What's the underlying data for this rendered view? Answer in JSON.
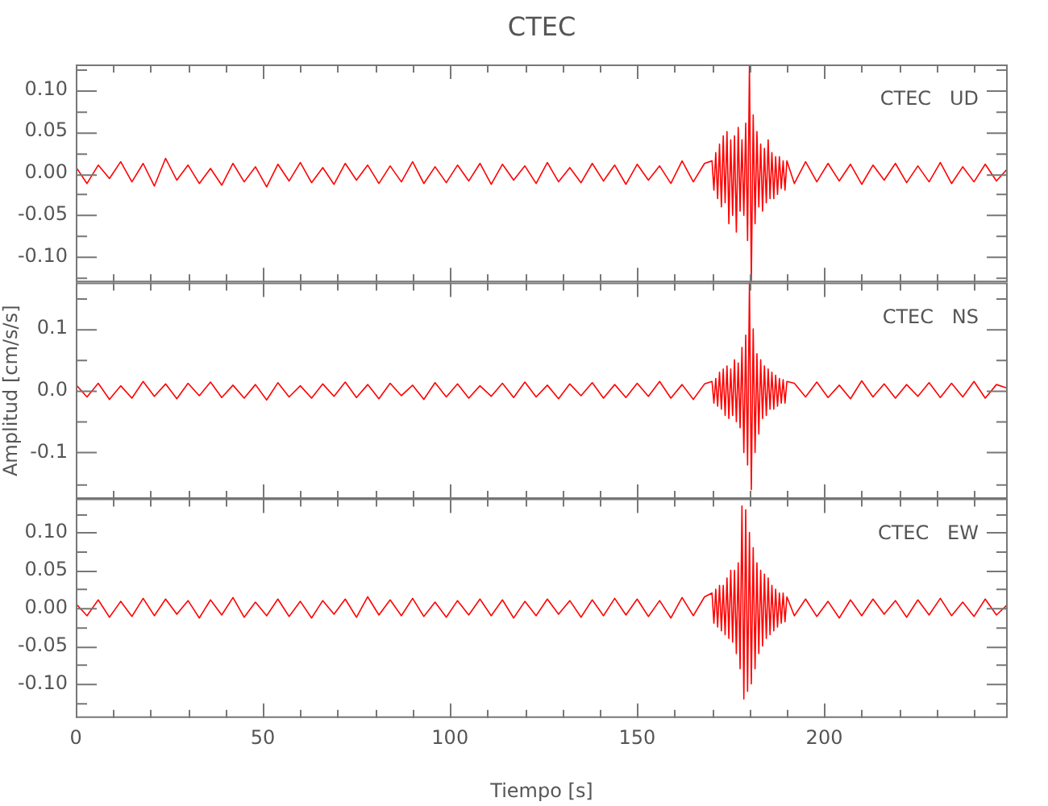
{
  "chart_data": [
    {
      "type": "line",
      "title": "CTEC",
      "annotations": [
        "CTEC   UD"
      ],
      "grid": false,
      "legend": false,
      "marker": "none",
      "tick_labels": "y",
      "xlim": [
        0,
        249
      ],
      "xticks": [
        0,
        {
          "value": 10,
          "label": null
        },
        {
          "value": 20,
          "label": null
        },
        {
          "value": 30,
          "label": null
        },
        {
          "value": 40,
          "label": null
        },
        50,
        {
          "value": 60,
          "label": null
        },
        {
          "value": 70,
          "label": null
        },
        {
          "value": 80,
          "label": null
        },
        {
          "value": 90,
          "label": null
        },
        100,
        {
          "value": 110,
          "label": null
        },
        {
          "value": 120,
          "label": null
        },
        {
          "value": 130,
          "label": null
        },
        {
          "value": 140,
          "label": null
        },
        150,
        {
          "value": 160,
          "label": null
        },
        {
          "value": 170,
          "label": null
        },
        {
          "value": 180,
          "label": null
        },
        {
          "value": 190,
          "label": null
        },
        200,
        {
          "value": 210,
          "label": null
        },
        {
          "value": 220,
          "label": null
        },
        {
          "value": 230,
          "label": null
        },
        {
          "value": 240,
          "label": null
        }
      ],
      "ylim": [
        -0.13,
        0.13
      ],
      "yticks": [
        {
          "value": -0.125,
          "label": null
        },
        {
          "value": -0.1,
          "label": "-0.10"
        },
        {
          "value": -0.075,
          "label": null
        },
        {
          "value": -0.05,
          "label": "-0.05"
        },
        {
          "value": -0.025,
          "label": null
        },
        {
          "value": 0,
          "label": "0.00"
        },
        {
          "value": 0.025,
          "label": null
        },
        {
          "value": 0.05,
          "label": "0.05"
        },
        {
          "value": 0.075,
          "label": null
        },
        {
          "value": 0.1,
          "label": "0.10"
        },
        {
          "value": 0.125,
          "label": null
        }
      ],
      "x": [
        0,
        3,
        6,
        9,
        12,
        15,
        18,
        21,
        24,
        27,
        30,
        33,
        36,
        39,
        42,
        45,
        48,
        51,
        54,
        57,
        60,
        63,
        66,
        69,
        72,
        75,
        78,
        81,
        84,
        87,
        90,
        93,
        96,
        99,
        102,
        105,
        108,
        111,
        114,
        117,
        120,
        123,
        126,
        129,
        132,
        135,
        138,
        141,
        144,
        147,
        150,
        153,
        156,
        159,
        162,
        165,
        168,
        170,
        170.5,
        171,
        171.5,
        172,
        172.5,
        173,
        173.5,
        174,
        174.5,
        175,
        175.5,
        176,
        176.5,
        177,
        177.5,
        178,
        178.5,
        179,
        179.5,
        180,
        180.5,
        181,
        181.5,
        182,
        182.5,
        183,
        183.5,
        184,
        184.5,
        185,
        185.5,
        186,
        186.5,
        187,
        187.5,
        188,
        188.5,
        189,
        189.5,
        190,
        192,
        195,
        198,
        201,
        204,
        207,
        210,
        213,
        216,
        219,
        222,
        225,
        228,
        231,
        234,
        237,
        240,
        243,
        246,
        249
      ],
      "series": [
        {
          "color": "#ff0000",
          "values": [
            0.008,
            -0.012,
            0.01,
            -0.006,
            0.014,
            -0.01,
            0.012,
            -0.015,
            0.018,
            -0.008,
            0.01,
            -0.012,
            0.006,
            -0.014,
            0.012,
            -0.01,
            0.008,
            -0.016,
            0.011,
            -0.009,
            0.013,
            -0.011,
            0.007,
            -0.013,
            0.012,
            -0.008,
            0.01,
            -0.012,
            0.009,
            -0.01,
            0.014,
            -0.012,
            0.008,
            -0.011,
            0.01,
            -0.009,
            0.012,
            -0.013,
            0.011,
            -0.008,
            0.009,
            -0.012,
            0.013,
            -0.01,
            0.007,
            -0.011,
            0.012,
            -0.009,
            0.01,
            -0.013,
            0.011,
            -0.008,
            0.009,
            -0.012,
            0.015,
            -0.01,
            0.012,
            0.015,
            -0.02,
            0.025,
            -0.03,
            0.035,
            -0.04,
            0.045,
            -0.035,
            0.05,
            -0.06,
            0.04,
            -0.05,
            0.045,
            -0.07,
            0.055,
            -0.045,
            0.04,
            -0.05,
            0.06,
            -0.08,
            0.13,
            -0.13,
            0.07,
            -0.06,
            0.05,
            -0.04,
            0.035,
            -0.045,
            0.03,
            -0.035,
            0.04,
            -0.03,
            0.025,
            -0.03,
            0.02,
            -0.025,
            0.02,
            -0.018,
            0.015,
            -0.02,
            0.015,
            -0.012,
            0.014,
            -0.01,
            0.012,
            -0.009,
            0.011,
            -0.013,
            0.01,
            -0.008,
            0.012,
            -0.011,
            0.009,
            -0.01,
            0.013,
            -0.012,
            0.008,
            -0.01,
            0.011,
            -0.009,
            0.006
          ]
        }
      ]
    },
    {
      "type": "line",
      "ylabel": "Amplitud [cm/s/s]",
      "annotations": [
        "CTEC   NS"
      ],
      "grid": false,
      "legend": false,
      "marker": "none",
      "tick_labels": "y",
      "xlim": [
        0,
        249
      ],
      "xticks": [
        0,
        {
          "value": 10,
          "label": null
        },
        {
          "value": 20,
          "label": null
        },
        {
          "value": 30,
          "label": null
        },
        {
          "value": 40,
          "label": null
        },
        50,
        {
          "value": 60,
          "label": null
        },
        {
          "value": 70,
          "label": null
        },
        {
          "value": 80,
          "label": null
        },
        {
          "value": 90,
          "label": null
        },
        100,
        {
          "value": 110,
          "label": null
        },
        {
          "value": 120,
          "label": null
        },
        {
          "value": 130,
          "label": null
        },
        {
          "value": 140,
          "label": null
        },
        150,
        {
          "value": 160,
          "label": null
        },
        {
          "value": 170,
          "label": null
        },
        {
          "value": 180,
          "label": null
        },
        {
          "value": 190,
          "label": null
        },
        200,
        {
          "value": 210,
          "label": null
        },
        {
          "value": 220,
          "label": null
        },
        {
          "value": 230,
          "label": null
        },
        {
          "value": 240,
          "label": null
        }
      ],
      "ylim": [
        -0.175,
        0.175
      ],
      "yticks": [
        {
          "value": -0.15,
          "label": null
        },
        {
          "value": -0.1,
          "label": "-0.1"
        },
        {
          "value": -0.05,
          "label": null
        },
        {
          "value": 0,
          "label": "0.0"
        },
        {
          "value": 0.05,
          "label": null
        },
        {
          "value": 0.1,
          "label": "0.1"
        },
        {
          "value": 0.15,
          "label": null
        }
      ],
      "x": [
        0,
        3,
        6,
        9,
        12,
        15,
        18,
        21,
        24,
        27,
        30,
        33,
        36,
        39,
        42,
        45,
        48,
        51,
        54,
        57,
        60,
        63,
        66,
        69,
        72,
        75,
        78,
        81,
        84,
        87,
        90,
        93,
        96,
        99,
        102,
        105,
        108,
        111,
        114,
        117,
        120,
        123,
        126,
        129,
        132,
        135,
        138,
        141,
        144,
        147,
        150,
        153,
        156,
        159,
        162,
        165,
        168,
        170,
        170.5,
        171,
        171.5,
        172,
        172.5,
        173,
        173.5,
        174,
        174.5,
        175,
        175.5,
        176,
        176.5,
        177,
        177.5,
        178,
        178.5,
        179,
        179.5,
        180,
        180.5,
        181,
        181.5,
        182,
        182.5,
        183,
        183.5,
        184,
        184.5,
        185,
        185.5,
        186,
        186.5,
        187,
        187.5,
        188,
        188.5,
        189,
        189.5,
        190,
        192,
        195,
        198,
        201,
        204,
        207,
        210,
        213,
        216,
        219,
        222,
        225,
        228,
        231,
        234,
        237,
        240,
        243,
        246,
        249
      ],
      "series": [
        {
          "color": "#ff0000",
          "values": [
            0.01,
            -0.01,
            0.012,
            -0.014,
            0.008,
            -0.012,
            0.015,
            -0.009,
            0.011,
            -0.013,
            0.012,
            -0.008,
            0.014,
            -0.011,
            0.009,
            -0.012,
            0.01,
            -0.015,
            0.013,
            -0.01,
            0.008,
            -0.012,
            0.011,
            -0.009,
            0.014,
            -0.011,
            0.01,
            -0.013,
            0.012,
            -0.008,
            0.009,
            -0.014,
            0.013,
            -0.01,
            0.011,
            -0.012,
            0.008,
            -0.009,
            0.012,
            -0.011,
            0.014,
            -0.01,
            0.009,
            -0.013,
            0.011,
            -0.008,
            0.013,
            -0.012,
            0.01,
            -0.011,
            0.012,
            -0.009,
            0.015,
            -0.012,
            0.01,
            -0.014,
            0.011,
            0.015,
            -0.02,
            0.02,
            -0.025,
            0.03,
            -0.03,
            0.035,
            -0.04,
            0.04,
            -0.045,
            0.035,
            -0.04,
            0.05,
            -0.05,
            0.045,
            -0.06,
            0.07,
            -0.1,
            0.09,
            -0.12,
            0.175,
            -0.16,
            0.1,
            -0.1,
            0.06,
            -0.07,
            0.05,
            -0.045,
            0.04,
            -0.04,
            0.035,
            -0.03,
            0.03,
            -0.03,
            0.025,
            -0.025,
            0.02,
            -0.02,
            0.018,
            -0.02,
            0.015,
            0.012,
            -0.01,
            0.014,
            -0.011,
            0.009,
            -0.013,
            0.016,
            -0.01,
            0.011,
            -0.012,
            0.01,
            -0.009,
            0.013,
            -0.011,
            0.012,
            -0.01,
            0.015,
            -0.012,
            0.01,
            0.004
          ]
        }
      ]
    },
    {
      "type": "line",
      "xlabel": "Tiempo [s]",
      "annotations": [
        "CTEC   EW"
      ],
      "grid": false,
      "legend": false,
      "marker": "none",
      "xlim": [
        0,
        249
      ],
      "xticks": [
        0,
        {
          "value": 10,
          "label": null
        },
        {
          "value": 20,
          "label": null
        },
        {
          "value": 30,
          "label": null
        },
        {
          "value": 40,
          "label": null
        },
        50,
        {
          "value": 60,
          "label": null
        },
        {
          "value": 70,
          "label": null
        },
        {
          "value": 80,
          "label": null
        },
        {
          "value": 90,
          "label": null
        },
        100,
        {
          "value": 110,
          "label": null
        },
        {
          "value": 120,
          "label": null
        },
        {
          "value": 130,
          "label": null
        },
        {
          "value": 140,
          "label": null
        },
        150,
        {
          "value": 160,
          "label": null
        },
        {
          "value": 170,
          "label": null
        },
        {
          "value": 180,
          "label": null
        },
        {
          "value": 190,
          "label": null
        },
        200,
        {
          "value": 210,
          "label": null
        },
        {
          "value": 220,
          "label": null
        },
        {
          "value": 230,
          "label": null
        },
        {
          "value": 240,
          "label": null
        }
      ],
      "ylim": [
        -0.145,
        0.145
      ],
      "yticks": [
        {
          "value": -0.125,
          "label": null
        },
        {
          "value": -0.1,
          "label": "-0.10"
        },
        {
          "value": -0.075,
          "label": null
        },
        {
          "value": -0.05,
          "label": "-0.05"
        },
        {
          "value": -0.025,
          "label": null
        },
        {
          "value": 0,
          "label": "0.00"
        },
        {
          "value": 0.025,
          "label": null
        },
        {
          "value": 0.05,
          "label": "0.05"
        },
        {
          "value": 0.075,
          "label": null
        },
        {
          "value": 0.1,
          "label": "0.10"
        },
        {
          "value": 0.125,
          "label": null
        }
      ],
      "x": [
        0,
        3,
        6,
        9,
        12,
        15,
        18,
        21,
        24,
        27,
        30,
        33,
        36,
        39,
        42,
        45,
        48,
        51,
        54,
        57,
        60,
        63,
        66,
        69,
        72,
        75,
        78,
        81,
        84,
        87,
        90,
        93,
        96,
        99,
        102,
        105,
        108,
        111,
        114,
        117,
        120,
        123,
        126,
        129,
        132,
        135,
        138,
        141,
        144,
        147,
        150,
        153,
        156,
        159,
        162,
        165,
        168,
        170,
        170.5,
        171,
        171.5,
        172,
        172.5,
        173,
        173.5,
        174,
        174.5,
        175,
        175.5,
        176,
        176.5,
        177,
        177.5,
        178,
        178.5,
        179,
        179.5,
        180,
        180.5,
        181,
        181.5,
        182,
        182.5,
        183,
        183.5,
        184,
        184.5,
        185,
        185.5,
        186,
        186.5,
        187,
        187.5,
        188,
        188.5,
        189,
        189.5,
        190,
        192,
        195,
        198,
        201,
        204,
        207,
        210,
        213,
        216,
        219,
        222,
        225,
        228,
        231,
        234,
        237,
        240,
        243,
        246,
        249
      ],
      "series": [
        {
          "color": "#ff0000",
          "values": [
            0.006,
            -0.01,
            0.011,
            -0.012,
            0.009,
            -0.011,
            0.013,
            -0.01,
            0.012,
            -0.008,
            0.01,
            -0.013,
            0.011,
            -0.009,
            0.014,
            -0.012,
            0.008,
            -0.01,
            0.012,
            -0.011,
            0.009,
            -0.013,
            0.01,
            -0.008,
            0.012,
            -0.012,
            0.015,
            -0.009,
            0.011,
            -0.01,
            0.013,
            -0.011,
            0.008,
            -0.012,
            0.01,
            -0.009,
            0.012,
            -0.01,
            0.011,
            -0.013,
            0.009,
            -0.01,
            0.012,
            -0.008,
            0.01,
            -0.012,
            0.011,
            -0.01,
            0.013,
            -0.009,
            0.012,
            -0.011,
            0.01,
            -0.013,
            0.014,
            -0.01,
            0.015,
            0.02,
            -0.02,
            0.025,
            -0.025,
            0.03,
            -0.03,
            0.03,
            -0.035,
            0.04,
            -0.04,
            0.05,
            -0.045,
            0.05,
            -0.06,
            0.06,
            -0.08,
            0.135,
            -0.12,
            0.13,
            -0.11,
            0.1,
            -0.1,
            0.08,
            -0.08,
            0.06,
            -0.06,
            0.05,
            -0.05,
            0.045,
            -0.04,
            0.04,
            -0.035,
            0.03,
            -0.03,
            0.025,
            -0.025,
            0.02,
            -0.02,
            0.02,
            -0.018,
            0.015,
            -0.01,
            0.012,
            -0.011,
            0.009,
            -0.013,
            0.011,
            -0.01,
            0.012,
            -0.008,
            0.01,
            -0.012,
            0.011,
            -0.009,
            0.013,
            -0.01,
            0.008,
            -0.011,
            0.012,
            -0.009,
            0.005
          ]
        }
      ]
    }
  ]
}
